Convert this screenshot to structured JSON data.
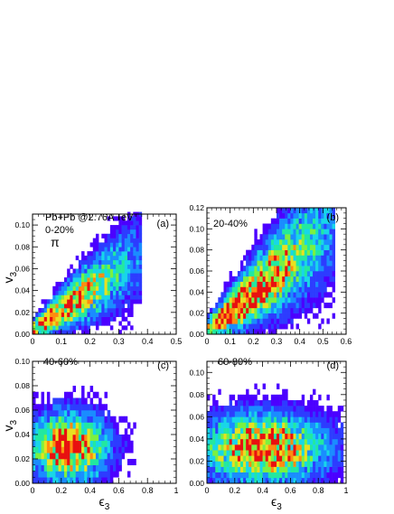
{
  "chart_data": [
    {
      "panel": "(a)",
      "type": "heatmap",
      "annotations": [
        "Pb+Pb @2.76A TeV",
        "0-20%",
        "π"
      ],
      "xlabel": "",
      "ylabel": "v",
      "ylabel_sub": "3",
      "xlim": [
        0,
        0.5
      ],
      "ylim": [
        0,
        0.11
      ],
      "xticks": [
        "0",
        "0.1",
        "0.2",
        "0.3",
        "0.4",
        "0.5"
      ],
      "yticks": [
        "0.00",
        "0.02",
        "0.04",
        "0.06",
        "0.08",
        "0.10"
      ],
      "xbin": 0.01,
      "ybin": 0.004,
      "ridge": {
        "slope": 0.18,
        "intercept": 0.004,
        "xmax": 0.38,
        "spread": 0.005,
        "peak_x": 0.08
      }
    },
    {
      "panel": "(b)",
      "type": "heatmap",
      "annotations": [
        "20-40%"
      ],
      "xlabel": "",
      "ylabel": "",
      "ylabel_sub": "",
      "xlim": [
        0,
        0.6
      ],
      "ylim": [
        0,
        0.12
      ],
      "xticks": [
        "0",
        "0.1",
        "0.2",
        "0.3",
        "0.4",
        "0.5",
        "0.6"
      ],
      "yticks": [
        "0.00",
        "0.02",
        "0.04",
        "0.06",
        "0.08",
        "0.10",
        "0.12"
      ],
      "xbin": 0.012,
      "ybin": 0.005,
      "ridge": {
        "slope": 0.19,
        "intercept": 0.002,
        "xmax": 0.55,
        "spread": 0.007,
        "peak_x": 0.15
      }
    },
    {
      "panel": "(c)",
      "type": "heatmap",
      "annotations": [
        "40-60%"
      ],
      "xlabel": "ϵ",
      "xlabel_sub": "3",
      "ylabel": "v",
      "ylabel_sub": "3",
      "xlim": [
        0,
        1
      ],
      "ylim": [
        0,
        0.1
      ],
      "xticks": [
        "0",
        "0.2",
        "0.4",
        "0.6",
        "0.8",
        "1"
      ],
      "yticks": [
        "0.00",
        "0.02",
        "0.04",
        "0.06",
        "0.08",
        "0.10"
      ],
      "xbin": 0.02,
      "ybin": 0.005,
      "blob": {
        "cx": 0.25,
        "cy": 0.03,
        "sx": 0.18,
        "sy": 0.018,
        "xmax": 0.72,
        "ymax": 0.08
      }
    },
    {
      "panel": "(d)",
      "type": "heatmap",
      "annotations": [
        "60-80%"
      ],
      "xlabel": "ϵ",
      "xlabel_sub": "3",
      "ylabel": "",
      "ylabel_sub": "",
      "xlim": [
        0,
        1
      ],
      "ylim": [
        0,
        0.11
      ],
      "xticks": [
        "0",
        "0.2",
        "0.4",
        "0.6",
        "0.8",
        "1"
      ],
      "yticks": [
        "0.00",
        "0.02",
        "0.04",
        "0.06",
        "0.08",
        "0.10"
      ],
      "xbin": 0.02,
      "ybin": 0.005,
      "blob": {
        "cx": 0.4,
        "cy": 0.032,
        "sx": 0.3,
        "sy": 0.02,
        "xmax": 0.98,
        "ymax": 0.1
      }
    }
  ],
  "palette": [
    "#4b00ff",
    "#2d3cff",
    "#1a8cff",
    "#18d6e8",
    "#22e8a0",
    "#7cf040",
    "#e8e020",
    "#ff8c10",
    "#e81010"
  ]
}
